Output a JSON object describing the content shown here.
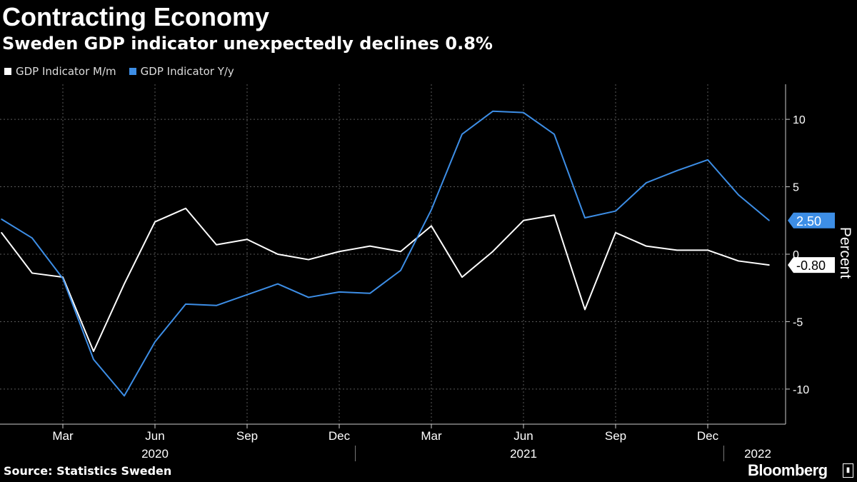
{
  "header": {
    "title": "Contracting Economy",
    "subtitle": "Sweden GDP indicator unexpectedly declines 0.8%"
  },
  "footer": {
    "source": "Source: Statistics Sweden",
    "brand": "Bloomberg"
  },
  "colors": {
    "background": "#000000",
    "series_mm": "#ffffff",
    "series_yy": "#3d8ee6",
    "grid": "#555555"
  },
  "chart_data": {
    "type": "line",
    "x": [
      "2020-01",
      "2020-02",
      "2020-03",
      "2020-04",
      "2020-05",
      "2020-06",
      "2020-07",
      "2020-08",
      "2020-09",
      "2020-10",
      "2020-11",
      "2020-12",
      "2021-01",
      "2021-02",
      "2021-03",
      "2021-04",
      "2021-05",
      "2021-06",
      "2021-07",
      "2021-08",
      "2021-09",
      "2021-10",
      "2021-11",
      "2021-12",
      "2022-01",
      "2022-02"
    ],
    "series": [
      {
        "name": "GDP Indicator M/m",
        "color": "#ffffff",
        "last_label": "-0.80",
        "values": [
          1.6,
          -1.4,
          -1.7,
          -7.2,
          -2.2,
          2.4,
          3.4,
          0.7,
          1.1,
          0.0,
          -0.4,
          0.2,
          0.6,
          0.2,
          2.1,
          -1.7,
          0.2,
          2.5,
          2.9,
          -4.1,
          1.6,
          0.6,
          0.3,
          0.3,
          -0.5,
          -0.8
        ]
      },
      {
        "name": "GDP Indicator Y/y",
        "color": "#3d8ee6",
        "last_label": "2.50",
        "values": [
          2.6,
          1.2,
          -1.8,
          -7.8,
          -10.5,
          -6.5,
          -3.7,
          -3.8,
          -3.0,
          -2.2,
          -3.2,
          -2.8,
          -2.9,
          -1.2,
          3.3,
          8.9,
          10.6,
          10.5,
          8.9,
          2.7,
          3.2,
          5.3,
          6.2,
          7.0,
          4.4,
          2.5
        ]
      }
    ],
    "x_ticks": [
      {
        "x": "2020-03",
        "label": "Mar"
      },
      {
        "x": "2020-06",
        "label": "Jun"
      },
      {
        "x": "2020-09",
        "label": "Sep"
      },
      {
        "x": "2020-12",
        "label": "Dec"
      },
      {
        "x": "2021-03",
        "label": "Mar"
      },
      {
        "x": "2021-06",
        "label": "Jun"
      },
      {
        "x": "2021-09",
        "label": "Sep"
      },
      {
        "x": "2021-12",
        "label": "Dec"
      }
    ],
    "year_labels": [
      {
        "x": "2020-06",
        "label": "2020"
      },
      {
        "x": "2021-06",
        "label": "2021"
      },
      {
        "x": "2022-02",
        "label": "2022"
      }
    ],
    "y_ticks": [
      10,
      5,
      0,
      -5,
      -10
    ],
    "ylim": [
      -12.6,
      12.6
    ],
    "ylabel": "Percent",
    "legend_position": "top-left",
    "grid": true
  }
}
